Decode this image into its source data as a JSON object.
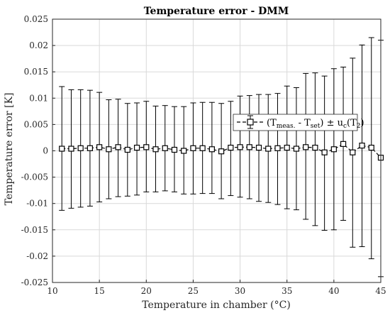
{
  "chart_data": {
    "type": "scatter",
    "title": "Temperature error - DMM",
    "xlabel": "Temperature in chamber (°C)",
    "ylabel": "Temperature error [K]",
    "xlim": [
      10,
      45
    ],
    "ylim": [
      -0.025,
      0.025
    ],
    "xticks": [
      10,
      15,
      20,
      25,
      30,
      35,
      40,
      45
    ],
    "yticks": [
      -0.025,
      -0.02,
      -0.015,
      -0.01,
      -0.005,
      0,
      0.005,
      0.01,
      0.015,
      0.02,
      0.025
    ],
    "xtick_labels": [
      "10",
      "15",
      "20",
      "25",
      "30",
      "35",
      "40",
      "45"
    ],
    "ytick_labels": [
      "-0.025",
      "-0.02",
      "-0.015",
      "-0.01",
      "-0.005",
      "0",
      "0.005",
      "0.01",
      "0.015",
      "0.02",
      "0.025"
    ],
    "grid": true,
    "legend_position": "right",
    "legend": {
      "parts": [
        "(T",
        "meas.",
        " - T",
        "set",
        ") ± u",
        "c",
        "(T",
        "2",
        ")"
      ]
    },
    "series": [
      {
        "marker": "square",
        "line": "dashed",
        "color": "#000000",
        "x": [
          11,
          12,
          13,
          14,
          15,
          16,
          17,
          18,
          19,
          20,
          21,
          22,
          23,
          24,
          25,
          26,
          27,
          28,
          29,
          30,
          31,
          32,
          33,
          34,
          35,
          36,
          37,
          38,
          39,
          40,
          41,
          42,
          43,
          44,
          45
        ],
        "y": [
          0.0004,
          0.0004,
          0.0005,
          0.0005,
          0.0007,
          0.0003,
          0.0007,
          0.0002,
          0.0006,
          0.0007,
          0.0003,
          0.0005,
          0.0002,
          0.0,
          0.0005,
          0.0005,
          0.0003,
          -0.0001,
          0.0006,
          0.0007,
          0.0007,
          0.0006,
          0.0004,
          0.0005,
          0.0006,
          0.0004,
          0.0007,
          0.0006,
          -0.0003,
          0.0003,
          0.0013,
          -0.0003,
          0.001,
          0.0006,
          -0.0013
        ],
        "err_upper": [
          0.0122,
          0.0116,
          0.0116,
          0.0115,
          0.0111,
          0.0097,
          0.0098,
          0.009,
          0.0091,
          0.0094,
          0.0085,
          0.0086,
          0.0084,
          0.0084,
          0.0091,
          0.0092,
          0.0092,
          0.009,
          0.0094,
          0.0104,
          0.0105,
          0.0107,
          0.0107,
          0.0109,
          0.0123,
          0.012,
          0.0147,
          0.0148,
          0.0142,
          0.0156,
          0.0159,
          0.0176,
          0.0201,
          0.0215,
          0.021
        ],
        "err_lower": [
          -0.0113,
          -0.0109,
          -0.0107,
          -0.0105,
          -0.0097,
          -0.0091,
          -0.0087,
          -0.0086,
          -0.0084,
          -0.0078,
          -0.0078,
          -0.0076,
          -0.0078,
          -0.0082,
          -0.0082,
          -0.0081,
          -0.0081,
          -0.0091,
          -0.0085,
          -0.0088,
          -0.0091,
          -0.0096,
          -0.0098,
          -0.0102,
          -0.011,
          -0.0112,
          -0.013,
          -0.0142,
          -0.0151,
          -0.015,
          -0.0132,
          -0.0183,
          -0.0182,
          -0.0205,
          -0.0239
        ]
      }
    ]
  }
}
